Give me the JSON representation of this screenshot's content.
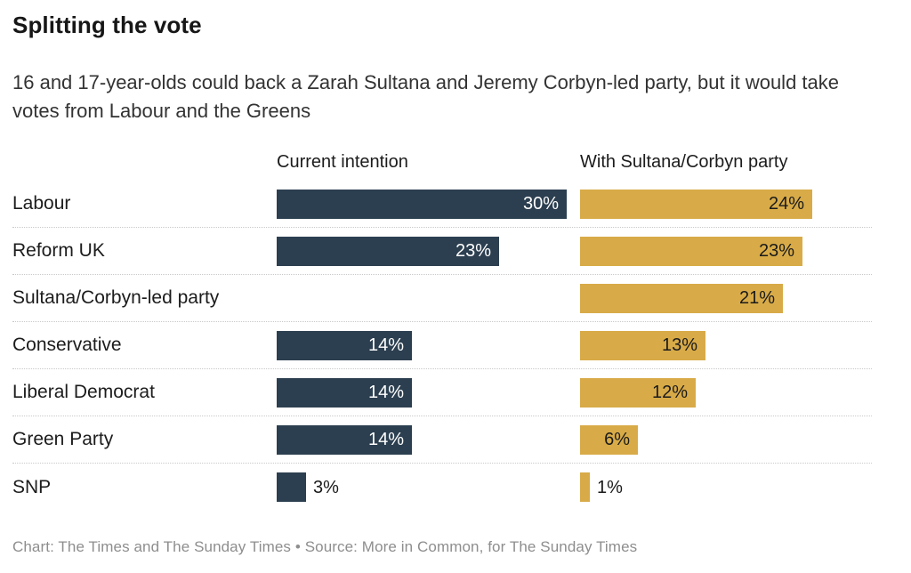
{
  "header": {
    "title": "Splitting the vote",
    "subtitle": "16 and 17-year-olds could back a Zarah Sultana and Jeremy Corbyn-led party, but it would take votes from Labour and the Greens"
  },
  "chart_data": {
    "type": "bar",
    "orientation": "horizontal",
    "title": "Splitting the vote",
    "subtitle": "16 and 17-year-olds could back a Zarah Sultana and Jeremy Corbyn-led party, but it would take votes from Labour and the Greens",
    "categories": [
      "Labour",
      "Reform UK",
      "Sultana/Corbyn-led party",
      "Conservative",
      "Liberal Democrat",
      "Green Party",
      "SNP"
    ],
    "series": [
      {
        "name": "Current intention",
        "color": "#2c3f50",
        "values": [
          30,
          23,
          null,
          14,
          14,
          14,
          3
        ]
      },
      {
        "name": "With Sultana/Corbyn party",
        "color": "#d8ab48",
        "values": [
          24,
          23,
          21,
          13,
          12,
          6,
          1
        ]
      }
    ],
    "value_suffix": "%",
    "xlim": [
      0,
      30
    ],
    "grid": false,
    "legend_position": "column-headers",
    "row_separator": "dotted"
  },
  "style": {
    "inside_label_dark_series_text": "#ffffff",
    "inside_label_gold_series_text": "#1a1a1a",
    "outside_label_text": "#1a1a1a",
    "separator_color": "#c9c9c9",
    "footer_text_color": "#8e8e8e"
  },
  "footer": {
    "caption": "Chart: The Times and The Sunday Times • Source: More in Common, for The Sunday Times"
  }
}
